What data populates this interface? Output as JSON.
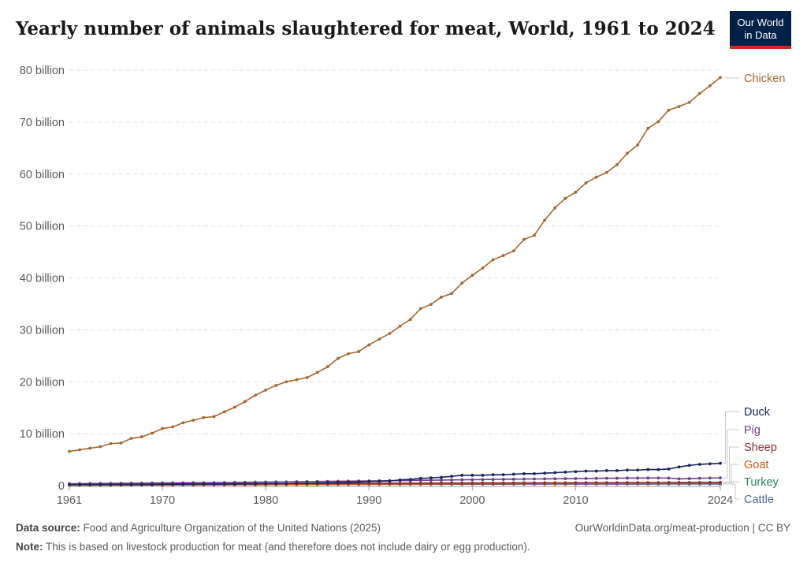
{
  "header": {
    "title": "Yearly number of animals slaughtered for meat, World, 1961 to 2024",
    "logo_line1": "Our World",
    "logo_line2": "in Data",
    "logo_color": "#002147",
    "logo_accent": "#ce261e"
  },
  "footer": {
    "source_label": "Data source:",
    "source_text": "Food and Agriculture Organization of the United Nations (2025)",
    "url": "OurWorldinData.org/meat-production | CC BY",
    "note_label": "Note:",
    "note_text": "This is based on livestock production for meat (and therefore does not include dairy or egg production)."
  },
  "chart_data": {
    "type": "line",
    "title": "Yearly number of animals slaughtered for meat, World, 1961 to 2024",
    "x_start": 1961,
    "x_end": 2024,
    "xlim": [
      1961,
      2024
    ],
    "ylim": [
      0,
      80
    ],
    "x_ticks": [
      "1961",
      "1970",
      "1980",
      "1990",
      "2000",
      "2010",
      "2024"
    ],
    "x_tick_values": [
      1961,
      1970,
      1980,
      1990,
      2000,
      2010,
      2024
    ],
    "y_ticks": [
      "0",
      "10 billion",
      "20 billion",
      "30 billion",
      "40 billion",
      "50 billion",
      "60 billion",
      "70 billion",
      "80 billion"
    ],
    "y_tick_values": [
      0,
      10,
      20,
      30,
      40,
      50,
      60,
      70,
      80
    ],
    "y_unit": "billion",
    "grid": "horizontal dashed",
    "legend": "right, labels at line ends",
    "series": [
      {
        "name": "Chicken",
        "color": "#a1692f",
        "values": [
          6.6,
          6.9,
          7.2,
          7.5,
          8.1,
          8.2,
          9.1,
          9.4,
          10.1,
          11.0,
          11.3,
          12.1,
          12.6,
          13.1,
          13.3,
          14.2,
          15.1,
          16.2,
          17.4,
          18.4,
          19.3,
          20.0,
          20.4,
          20.8,
          21.8,
          22.9,
          24.5,
          25.4,
          25.8,
          27.1,
          28.2,
          29.3,
          30.7,
          32.0,
          34.1,
          34.9,
          36.3,
          37.0,
          39.0,
          40.5,
          41.9,
          43.5,
          44.3,
          45.2,
          47.4,
          48.2,
          51.1,
          53.5,
          55.3,
          56.5,
          58.3,
          59.4,
          60.3,
          61.8,
          64.0,
          65.6,
          68.8,
          70.1,
          72.3,
          73.0,
          73.8,
          75.5,
          77.0,
          78.6
        ]
      },
      {
        "name": "Duck",
        "color": "#18265b",
        "values": [
          0.2,
          0.2,
          0.2,
          0.2,
          0.2,
          0.2,
          0.2,
          0.2,
          0.2,
          0.25,
          0.25,
          0.3,
          0.3,
          0.3,
          0.3,
          0.3,
          0.3,
          0.35,
          0.35,
          0.4,
          0.4,
          0.4,
          0.45,
          0.45,
          0.5,
          0.55,
          0.6,
          0.65,
          0.7,
          0.8,
          0.85,
          0.9,
          1.1,
          1.2,
          1.4,
          1.5,
          1.6,
          1.8,
          2.0,
          2.0,
          2.0,
          2.1,
          2.1,
          2.2,
          2.3,
          2.3,
          2.4,
          2.5,
          2.6,
          2.7,
          2.8,
          2.8,
          2.9,
          2.9,
          3.0,
          3.0,
          3.1,
          3.1,
          3.2,
          3.6,
          3.9,
          4.1,
          4.2,
          4.3
        ]
      },
      {
        "name": "Pig",
        "color": "#6d3e91",
        "values": [
          0.38,
          0.4,
          0.41,
          0.43,
          0.44,
          0.46,
          0.47,
          0.49,
          0.5,
          0.52,
          0.54,
          0.55,
          0.56,
          0.57,
          0.58,
          0.6,
          0.62,
          0.64,
          0.67,
          0.7,
          0.71,
          0.72,
          0.75,
          0.77,
          0.8,
          0.82,
          0.85,
          0.87,
          0.88,
          0.9,
          0.92,
          0.95,
          0.97,
          1.0,
          1.03,
          1.05,
          1.07,
          1.1,
          1.13,
          1.15,
          1.17,
          1.2,
          1.22,
          1.24,
          1.27,
          1.29,
          1.3,
          1.32,
          1.34,
          1.36,
          1.38,
          1.4,
          1.42,
          1.43,
          1.45,
          1.45,
          1.47,
          1.48,
          1.46,
          1.3,
          1.35,
          1.42,
          1.46,
          1.5
        ]
      },
      {
        "name": "Sheep",
        "color": "#883039",
        "values": [
          0.33,
          0.33,
          0.34,
          0.34,
          0.34,
          0.35,
          0.35,
          0.35,
          0.36,
          0.36,
          0.37,
          0.37,
          0.37,
          0.38,
          0.38,
          0.38,
          0.39,
          0.39,
          0.4,
          0.4,
          0.41,
          0.41,
          0.42,
          0.42,
          0.43,
          0.44,
          0.44,
          0.45,
          0.46,
          0.47,
          0.47,
          0.48,
          0.48,
          0.49,
          0.49,
          0.5,
          0.5,
          0.51,
          0.51,
          0.52,
          0.52,
          0.52,
          0.53,
          0.53,
          0.54,
          0.54,
          0.55,
          0.55,
          0.55,
          0.56,
          0.56,
          0.56,
          0.57,
          0.57,
          0.58,
          0.58,
          0.59,
          0.59,
          0.6,
          0.6,
          0.61,
          0.61,
          0.62,
          0.62
        ]
      },
      {
        "name": "Goat",
        "color": "#c05917",
        "values": [
          0.1,
          0.1,
          0.11,
          0.11,
          0.11,
          0.12,
          0.12,
          0.12,
          0.13,
          0.13,
          0.14,
          0.14,
          0.15,
          0.15,
          0.16,
          0.16,
          0.17,
          0.17,
          0.18,
          0.18,
          0.19,
          0.2,
          0.2,
          0.21,
          0.22,
          0.22,
          0.23,
          0.24,
          0.25,
          0.26,
          0.27,
          0.28,
          0.29,
          0.3,
          0.31,
          0.32,
          0.33,
          0.34,
          0.35,
          0.36,
          0.37,
          0.38,
          0.38,
          0.39,
          0.4,
          0.41,
          0.42,
          0.42,
          0.43,
          0.44,
          0.45,
          0.45,
          0.46,
          0.47,
          0.47,
          0.48,
          0.49,
          0.49,
          0.5,
          0.5,
          0.51,
          0.52,
          0.53,
          0.54
        ]
      },
      {
        "name": "Turkey",
        "color": "#2c8465",
        "values": [
          0.1,
          0.1,
          0.11,
          0.11,
          0.12,
          0.12,
          0.13,
          0.13,
          0.14,
          0.14,
          0.15,
          0.16,
          0.16,
          0.17,
          0.18,
          0.19,
          0.2,
          0.21,
          0.22,
          0.23,
          0.24,
          0.25,
          0.26,
          0.27,
          0.28,
          0.29,
          0.3,
          0.31,
          0.32,
          0.33,
          0.34,
          0.35,
          0.36,
          0.37,
          0.38,
          0.39,
          0.4,
          0.41,
          0.42,
          0.43,
          0.44,
          0.45,
          0.46,
          0.47,
          0.48,
          0.48,
          0.49,
          0.5,
          0.5,
          0.51,
          0.52,
          0.52,
          0.53,
          0.53,
          0.54,
          0.54,
          0.55,
          0.55,
          0.56,
          0.56,
          0.57,
          0.57,
          0.58,
          0.58
        ]
      },
      {
        "name": "Cattle",
        "color": "#4c6a9c",
        "values": [
          0.17,
          0.17,
          0.18,
          0.18,
          0.18,
          0.19,
          0.19,
          0.19,
          0.2,
          0.2,
          0.2,
          0.21,
          0.21,
          0.21,
          0.22,
          0.22,
          0.22,
          0.22,
          0.23,
          0.23,
          0.23,
          0.23,
          0.24,
          0.24,
          0.24,
          0.24,
          0.25,
          0.25,
          0.25,
          0.25,
          0.26,
          0.26,
          0.26,
          0.26,
          0.27,
          0.27,
          0.27,
          0.27,
          0.27,
          0.28,
          0.28,
          0.28,
          0.28,
          0.28,
          0.29,
          0.29,
          0.29,
          0.29,
          0.29,
          0.29,
          0.3,
          0.3,
          0.3,
          0.3,
          0.3,
          0.3,
          0.3,
          0.31,
          0.31,
          0.31,
          0.31,
          0.31,
          0.31,
          0.31
        ]
      }
    ]
  }
}
